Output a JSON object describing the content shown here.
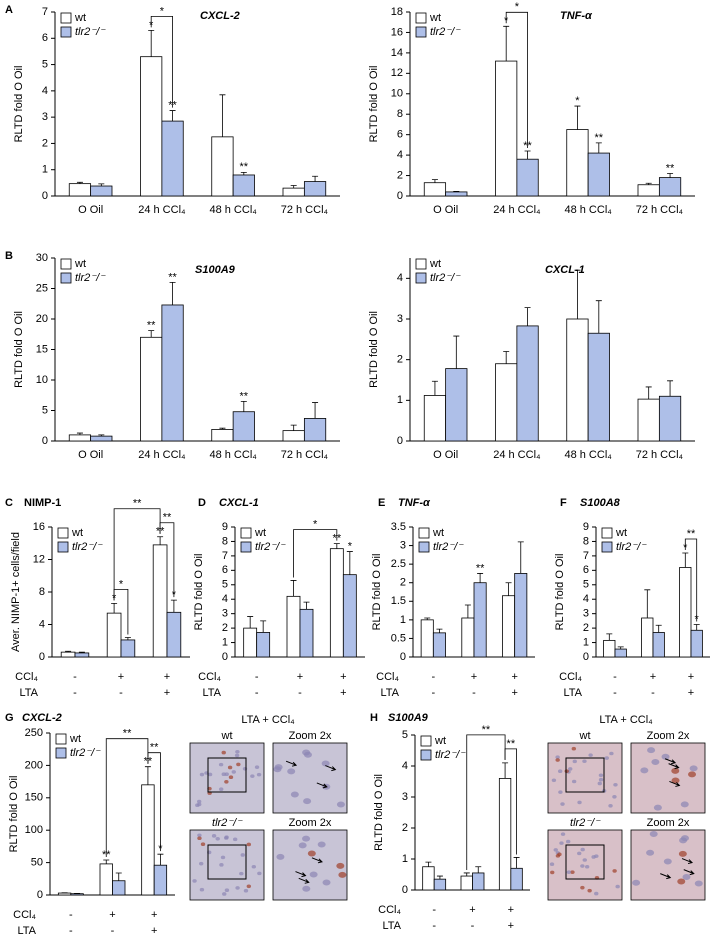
{
  "chart_data": [
    {
      "type": "bar",
      "panel": "A",
      "title": "CXCL-2",
      "y_label": "RLTD fold O Oil",
      "categories": [
        "O Oil",
        "24 h CCl₄",
        "48 h CCl₄",
        "72 h CCl₄"
      ],
      "series": [
        {
          "name": "wt",
          "color": "#ffffff",
          "values": [
            0.47,
            5.3,
            2.25,
            0.3
          ],
          "errors": [
            0.05,
            1.0,
            1.6,
            0.1
          ],
          "stars": [
            null,
            "*",
            null,
            null
          ]
        },
        {
          "name": "tlr2⁻/⁻",
          "color": "#aebfe8",
          "values": [
            0.38,
            2.85,
            0.8,
            0.55
          ],
          "errors": [
            0.08,
            0.4,
            0.1,
            0.2
          ],
          "stars": [
            null,
            "**",
            "**",
            null
          ]
        }
      ],
      "brackets": [
        {
          "label": "*",
          "from": {
            "series": 0,
            "category": 1
          },
          "to": {
            "series": 1,
            "category": 1
          }
        }
      ],
      "ylim": [
        0,
        7
      ],
      "yticks": [
        0,
        1,
        2,
        3,
        4,
        5,
        6,
        7
      ]
    },
    {
      "type": "bar",
      "title": "TNF-α",
      "y_label": "RLTD fold O Oil",
      "categories": [
        "O Oil",
        "24 h CCl₄",
        "48 h CCl₄",
        "72 h CCl₄"
      ],
      "series": [
        {
          "name": "wt",
          "color": "#ffffff",
          "values": [
            1.3,
            13.2,
            6.5,
            1.1
          ],
          "errors": [
            0.3,
            3.4,
            2.3,
            0.15
          ],
          "stars": [
            null,
            "*",
            "*",
            null
          ]
        },
        {
          "name": "tlr2⁻/⁻",
          "color": "#aebfe8",
          "values": [
            0.4,
            3.6,
            4.2,
            1.8
          ],
          "errors": [
            0.05,
            0.8,
            1.0,
            0.4
          ],
          "stars": [
            null,
            "**",
            "**",
            "**"
          ]
        }
      ],
      "brackets": [
        {
          "label": "*",
          "from": {
            "series": 0,
            "category": 1
          },
          "to": {
            "series": 1,
            "category": 1
          }
        }
      ],
      "ylim": [
        0,
        18
      ],
      "yticks": [
        0,
        2,
        4,
        6,
        8,
        10,
        12,
        14,
        16,
        18
      ]
    },
    {
      "type": "bar",
      "panel": "B",
      "title": "S100A9",
      "y_label": "RLTD fold O Oil",
      "categories": [
        "O Oil",
        "24 h CCl₄",
        "48 h CCl₄",
        "72 h CCl₄"
      ],
      "series": [
        {
          "name": "wt",
          "color": "#ffffff",
          "values": [
            1.0,
            17,
            1.9,
            1.7
          ],
          "errors": [
            0.3,
            1.1,
            0.2,
            0.9
          ],
          "stars": [
            null,
            "**",
            null,
            null
          ]
        },
        {
          "name": "tlr2⁻/⁻",
          "color": "#aebfe8",
          "values": [
            0.8,
            22.3,
            4.8,
            3.7
          ],
          "errors": [
            0.2,
            3.7,
            1.7,
            2.6
          ],
          "stars": [
            null,
            "**",
            "**",
            null
          ]
        }
      ],
      "ylim": [
        0,
        30
      ],
      "yticks": [
        0,
        5,
        10,
        15,
        20,
        25,
        30
      ]
    },
    {
      "type": "bar",
      "title": "CXCL-1",
      "y_label": "RLTD fold O Oil",
      "categories": [
        "O Oil",
        "24 h CCl₄",
        "48 h CCl₄",
        "72 h CCl₄"
      ],
      "series": [
        {
          "name": "wt",
          "color": "#ffffff",
          "values": [
            1.12,
            1.9,
            3.0,
            1.03
          ],
          "errors": [
            0.35,
            0.3,
            1.2,
            0.3
          ]
        },
        {
          "name": "tlr2⁻/⁻",
          "color": "#aebfe8",
          "values": [
            1.78,
            2.83,
            2.65,
            1.1
          ],
          "errors": [
            0.8,
            0.45,
            0.8,
            0.38
          ]
        }
      ],
      "ylim": [
        0,
        4.5
      ],
      "yticks": [
        0,
        1,
        2,
        3,
        4
      ]
    },
    {
      "type": "bar",
      "panel": "C",
      "title": "NIMP-1",
      "y_label": "Aver. NIMP-1+ cells/field",
      "condition_rows": [
        {
          "name": "CCl₄",
          "values": [
            "-",
            "+",
            "+"
          ]
        },
        {
          "name": "LTA",
          "values": [
            "-",
            "-",
            "+"
          ]
        }
      ],
      "series": [
        {
          "name": "wt",
          "color": "#ffffff",
          "values": [
            0.6,
            5.4,
            13.8
          ],
          "errors": [
            0.1,
            1.2,
            1.0
          ],
          "stars": [
            null,
            "*",
            "**"
          ]
        },
        {
          "name": "tlr2⁻/⁻",
          "color": "#aebfe8",
          "values": [
            0.5,
            2.1,
            5.5
          ],
          "errors": [
            0.1,
            0.3,
            1.5
          ],
          "stars": [
            null,
            null,
            "*"
          ]
        }
      ],
      "brackets": [
        {
          "label": "*",
          "from": {
            "series": 0,
            "category": 1
          },
          "to": {
            "series": 1,
            "category": 1
          }
        },
        {
          "label": "**",
          "from": {
            "series": 0,
            "category": 2
          },
          "to": {
            "series": 1,
            "category": 2
          }
        },
        {
          "label": "**",
          "from": {
            "series": 0,
            "category": 1
          },
          "to": {
            "series": 0,
            "category": 2
          }
        }
      ],
      "ylim": [
        0,
        16
      ],
      "yticks": [
        0,
        4,
        8,
        12,
        16
      ]
    },
    {
      "type": "bar",
      "panel": "D",
      "title": "CXCL-1",
      "y_label": "RLTD fold O Oil",
      "condition_rows": [
        {
          "name": "CCl₄",
          "values": [
            "-",
            "+",
            "+"
          ]
        },
        {
          "name": "LTA",
          "values": [
            "-",
            "-",
            "+"
          ]
        }
      ],
      "series": [
        {
          "name": "wt",
          "color": "#ffffff",
          "values": [
            2.0,
            4.2,
            7.5
          ],
          "errors": [
            0.8,
            1.1,
            0.35
          ],
          "stars": [
            null,
            null,
            "**"
          ]
        },
        {
          "name": "tlr2⁻/⁻",
          "color": "#aebfe8",
          "values": [
            1.7,
            3.3,
            5.7
          ],
          "errors": [
            0.8,
            0.5,
            1.6
          ],
          "stars": [
            null,
            null,
            "*"
          ]
        }
      ],
      "brackets": [
        {
          "label": "*",
          "from": {
            "series": 0,
            "category": 1
          },
          "to": {
            "series": 0,
            "category": 2
          }
        }
      ],
      "ylim": [
        0,
        9
      ],
      "yticks": [
        0,
        1,
        2,
        3,
        4,
        5,
        6,
        7,
        8,
        9
      ]
    },
    {
      "type": "bar",
      "panel": "E",
      "title": "TNF-α",
      "y_label": "RLTD fold O Oil",
      "condition_rows": [
        {
          "name": "CCl₄",
          "values": [
            "-",
            "+",
            "+"
          ]
        },
        {
          "name": "LTA",
          "values": [
            "-",
            "-",
            "+"
          ]
        }
      ],
      "series": [
        {
          "name": "wt",
          "color": "#ffffff",
          "values": [
            1.0,
            1.05,
            1.65
          ],
          "errors": [
            0.05,
            0.35,
            0.35
          ]
        },
        {
          "name": "tlr2⁻/⁻",
          "color": "#aebfe8",
          "values": [
            0.65,
            2.0,
            2.25
          ],
          "errors": [
            0.1,
            0.25,
            0.85
          ],
          "stars": [
            null,
            "**",
            null
          ]
        }
      ],
      "ylim": [
        0,
        3.5
      ],
      "yticks": [
        0,
        0.5,
        1,
        1.5,
        2,
        2.5,
        3,
        3.5
      ]
    },
    {
      "type": "bar",
      "panel": "F",
      "title": "S100A8",
      "y_label": "RLTD fold O Oil",
      "condition_rows": [
        {
          "name": "CCl₄",
          "values": [
            "-",
            "+",
            "+"
          ]
        },
        {
          "name": "LTA",
          "values": [
            "-",
            "-",
            "+"
          ]
        }
      ],
      "series": [
        {
          "name": "wt",
          "color": "#ffffff",
          "values": [
            1.15,
            2.7,
            6.2
          ],
          "errors": [
            0.45,
            1.95,
            1.0
          ],
          "stars": [
            null,
            null,
            "*"
          ]
        },
        {
          "name": "tlr2⁻/⁻",
          "color": "#aebfe8",
          "values": [
            0.55,
            1.7,
            1.85
          ],
          "errors": [
            0.15,
            0.5,
            0.4
          ],
          "stars": [
            null,
            null,
            "*"
          ]
        }
      ],
      "brackets": [
        {
          "label": "**",
          "from": {
            "series": 0,
            "category": 2
          },
          "to": {
            "series": 1,
            "category": 2
          }
        }
      ],
      "ylim": [
        0,
        9
      ],
      "yticks": [
        0,
        1,
        2,
        3,
        4,
        5,
        6,
        7,
        8,
        9
      ]
    },
    {
      "type": "bar",
      "panel": "G",
      "title": "CXCL-2",
      "y_label": "RLTD fold O Oil",
      "condition_rows": [
        {
          "name": "CCl₄",
          "values": [
            "-",
            "+",
            "+"
          ]
        },
        {
          "name": "LTA",
          "values": [
            "-",
            "-",
            "+"
          ]
        }
      ],
      "series": [
        {
          "name": "wt",
          "color": "#ffffff",
          "values": [
            3,
            48,
            170
          ],
          "errors": [
            0.5,
            6,
            28
          ],
          "stars": [
            null,
            "**",
            "**"
          ]
        },
        {
          "name": "tlr2⁻/⁻",
          "color": "#aebfe8",
          "values": [
            2,
            22,
            46
          ],
          "errors": [
            0.5,
            12,
            17
          ],
          "stars": [
            null,
            null,
            "*"
          ]
        }
      ],
      "brackets": [
        {
          "label": "**",
          "from": {
            "series": 0,
            "category": 2
          },
          "to": {
            "series": 1,
            "category": 2
          }
        },
        {
          "label": "**",
          "from": {
            "series": 0,
            "category": 1
          },
          "to": {
            "series": 0,
            "category": 2
          }
        }
      ],
      "ylim": [
        0,
        250
      ],
      "yticks": [
        0,
        50,
        100,
        150,
        200,
        250
      ]
    },
    {
      "type": "bar",
      "panel": "H",
      "title": "S100A9",
      "y_label": "RLTD fold O Oil",
      "condition_rows": [
        {
          "name": "CCl₄",
          "values": [
            "-",
            "+",
            "+"
          ]
        },
        {
          "name": "LTA",
          "values": [
            "-",
            "-",
            "+"
          ]
        }
      ],
      "series": [
        {
          "name": "wt",
          "color": "#ffffff",
          "values": [
            0.75,
            0.45,
            3.6
          ],
          "errors": [
            0.15,
            0.1,
            0.5
          ]
        },
        {
          "name": "tlr2⁻/⁻",
          "color": "#aebfe8",
          "values": [
            0.35,
            0.55,
            0.7
          ],
          "errors": [
            0.1,
            0.2,
            0.35
          ]
        }
      ],
      "brackets": [
        {
          "label": "**",
          "from": {
            "series": 0,
            "category": 2
          },
          "to": {
            "series": 1,
            "category": 2
          }
        },
        {
          "label": "**",
          "from": {
            "series": 0,
            "category": 1
          },
          "to": {
            "series": 0,
            "category": 2
          }
        }
      ],
      "ylim": [
        0,
        5
      ],
      "yticks": [
        0,
        1,
        2,
        3,
        4,
        5
      ]
    }
  ],
  "micrographs": [
    {
      "title": "LTA + CCl₄",
      "panels": [
        "wt",
        "Zoom 2x",
        "tlr2⁻/⁻",
        "Zoom 2x"
      ]
    },
    {
      "title": "LTA + CCl₄",
      "panels": [
        "wt",
        "Zoom 2x",
        "tlr2⁻/⁻",
        "Zoom 2x"
      ]
    }
  ]
}
